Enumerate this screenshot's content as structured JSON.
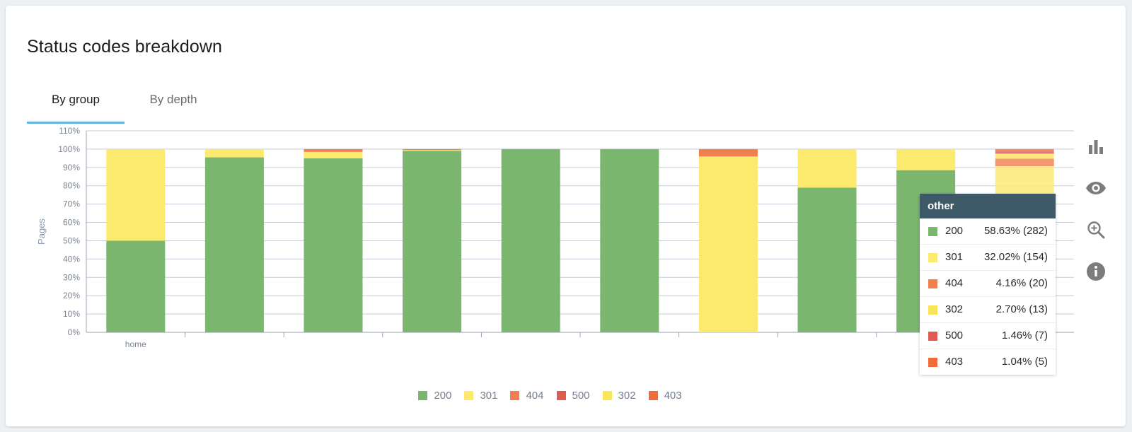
{
  "card": {
    "title": "Status codes breakdown"
  },
  "tabs": [
    {
      "label": "By group",
      "active": true
    },
    {
      "label": "By depth",
      "active": false
    }
  ],
  "colors": {
    "200": "#7ab66e",
    "301": "#fcea6e",
    "404": "#ef7f4c",
    "500": "#e05a52",
    "302": "#f8e55a",
    "403": "#f06b3a",
    "grid": "#c7ced8",
    "tab_accent": "#62b4dc",
    "tooltip_header": "#3e5968",
    "icons": "#7c7c7c"
  },
  "chart_data": {
    "type": "bar",
    "stacked": true,
    "ylabel": "Pages",
    "ylim": [
      0,
      110
    ],
    "yticks": [
      "0%",
      "10%",
      "20%",
      "30%",
      "40%",
      "50%",
      "60%",
      "70%",
      "80%",
      "90%",
      "100%",
      "110%"
    ],
    "categories": [
      "home",
      "",
      "",
      "",
      "",
      "",
      "",
      "",
      "",
      ""
    ],
    "highlighted_category_index": 9,
    "series": [
      {
        "name": "200",
        "values": [
          50,
          95.5,
          95,
          99,
          100,
          100,
          0,
          79,
          88.5,
          58.63
        ]
      },
      {
        "name": "301",
        "values": [
          50,
          4.5,
          3.5,
          0.5,
          0,
          0,
          96,
          21,
          11.5,
          32.02
        ]
      },
      {
        "name": "404",
        "values": [
          0,
          0,
          1.5,
          0.5,
          0,
          0,
          4,
          0,
          0,
          4.16
        ]
      },
      {
        "name": "500",
        "values": [
          0,
          0,
          0,
          0,
          0,
          0,
          0,
          0,
          0,
          1.46
        ]
      },
      {
        "name": "302",
        "values": [
          0,
          0,
          0,
          0,
          0,
          0,
          0,
          0,
          0,
          2.7
        ]
      },
      {
        "name": "403",
        "values": [
          0,
          0,
          0,
          0,
          0,
          0,
          0,
          0,
          0,
          1.04
        ]
      }
    ],
    "stack_order": [
      "200",
      "301",
      "404",
      "302",
      "500",
      "403"
    ],
    "legend": [
      "200",
      "301",
      "404",
      "500",
      "302",
      "403"
    ],
    "grid": true,
    "legend_position": "bottom-center"
  },
  "tooltip": {
    "title": "other",
    "rows": [
      {
        "code": "200",
        "value": "58.63% (282)",
        "color": "#7ab66e"
      },
      {
        "code": "301",
        "value": "32.02% (154)",
        "color": "#fcea6e"
      },
      {
        "code": "404",
        "value": "4.16% (20)",
        "color": "#ef7f4c"
      },
      {
        "code": "302",
        "value": "2.70% (13)",
        "color": "#f8e55a"
      },
      {
        "code": "500",
        "value": "1.46% (7)",
        "color": "#e05a52"
      },
      {
        "code": "403",
        "value": "1.04% (5)",
        "color": "#f06b3a"
      }
    ]
  },
  "side_icons": [
    "bar-chart-icon",
    "eye-icon",
    "zoom-in-icon",
    "info-icon"
  ]
}
